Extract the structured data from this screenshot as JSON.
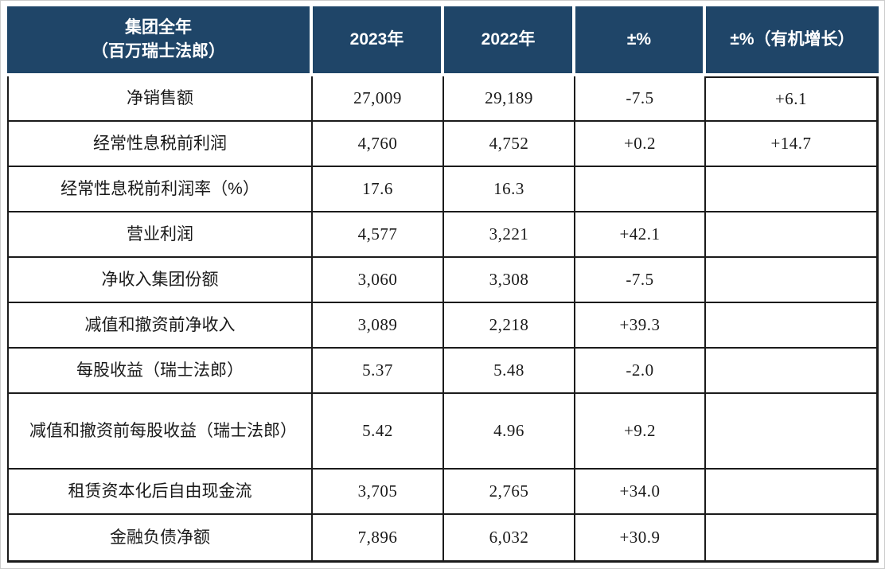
{
  "colors": {
    "header_bg": "#1f4568",
    "header_text": "#ffffff",
    "grid_border": "#1b1b1b",
    "body_text": "#1a1a1a",
    "page_frame": "#cccccc"
  },
  "table": {
    "header": {
      "group_line1": "集团全年",
      "group_line2": "（百万瑞士法郎）",
      "col_2023": "2023年",
      "col_2022": "2022年",
      "col_change": "±%",
      "col_organic": "±%（有机增长）"
    },
    "rows": [
      {
        "label": "净销售额",
        "y2023": "27,009",
        "y2022": "29,189",
        "change": "-7.5",
        "organic": "+6.1"
      },
      {
        "label": "经常性息税前利润",
        "y2023": "4,760",
        "y2022": "4,752",
        "change": "+0.2",
        "organic": "+14.7"
      },
      {
        "label": "经常性息税前利润率（%）",
        "y2023": "17.6",
        "y2022": "16.3",
        "change": "",
        "organic": ""
      },
      {
        "label": "营业利润",
        "y2023": "4,577",
        "y2022": "3,221",
        "change": "+42.1",
        "organic": ""
      },
      {
        "label": "净收入集团份额",
        "y2023": "3,060",
        "y2022": "3,308",
        "change": "-7.5",
        "organic": ""
      },
      {
        "label": "减值和撤资前净收入",
        "y2023": "3,089",
        "y2022": "2,218",
        "change": "+39.3",
        "organic": ""
      },
      {
        "label": "每股收益（瑞士法郎）",
        "y2023": "5.37",
        "y2022": "5.48",
        "change": "-2.0",
        "organic": ""
      },
      {
        "label": "减值和撤资前每股收益（瑞士法郎）",
        "y2023": "5.42",
        "y2022": "4.96",
        "change": "+9.2",
        "organic": ""
      },
      {
        "label": "租赁资本化后自由现金流",
        "y2023": "3,705",
        "y2022": "2,765",
        "change": "+34.0",
        "organic": ""
      },
      {
        "label": "金融负债净额",
        "y2023": "7,896",
        "y2022": "6,032",
        "change": "+30.9",
        "organic": ""
      }
    ]
  }
}
